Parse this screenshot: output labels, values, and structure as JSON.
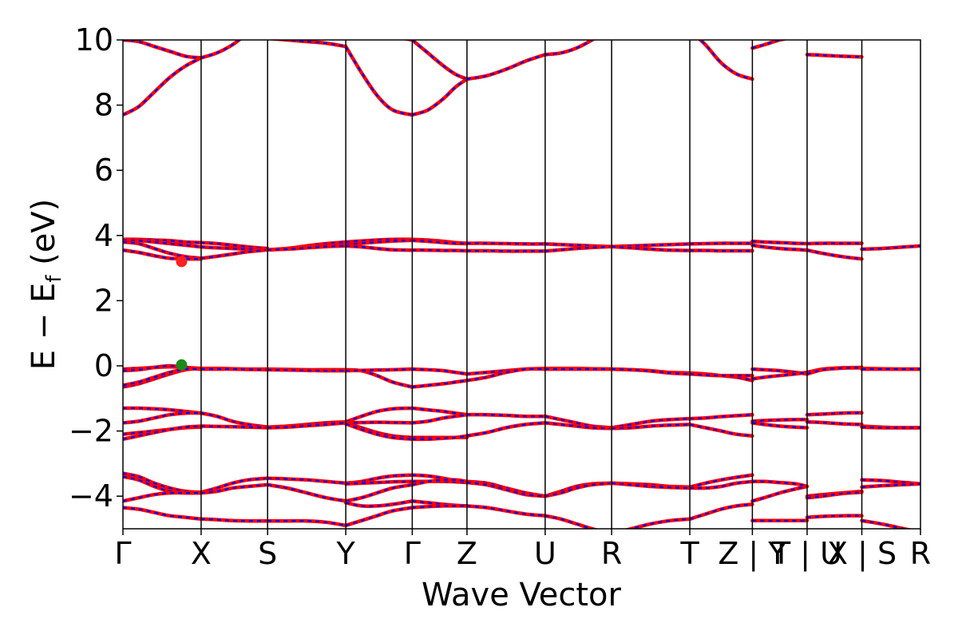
{
  "chart_data": {
    "type": "line",
    "title": "",
    "xlabel": "Wave Vector",
    "ylabel": "E − E_f (eV)",
    "ylabel_parts": {
      "main": "E − E",
      "sub": "f",
      "unit": " (eV)"
    },
    "ylim": [
      -5,
      10
    ],
    "yticks": [
      -4,
      -2,
      0,
      2,
      4,
      6,
      8,
      10
    ],
    "ytick_labels": [
      "−4",
      "−2",
      "0",
      "2",
      "4",
      "6",
      "8",
      "10"
    ],
    "grid": false,
    "kpath_positions": [
      0,
      1,
      1.85,
      2.85,
      3.7,
      4.4,
      5.4,
      6.25,
      7.25,
      8.05,
      8.75,
      9.45,
      10.2
    ],
    "kpath_labels": [
      "Γ",
      "X",
      "S",
      "Y",
      "Γ",
      "Z",
      "U",
      "R",
      "T",
      "Z | Y",
      "T | U",
      "X | S",
      "R"
    ],
    "line_color_outer": "#ff0000",
    "line_color_inner": "#0000ff",
    "markers": [
      {
        "name": "CBM",
        "x": 0.75,
        "y": 3.2,
        "color": "#ff2020"
      },
      {
        "name": "VBM",
        "x": 0.75,
        "y": 0.03,
        "color": "#1a8a1a"
      }
    ],
    "segments": [
      {
        "x": [
          0,
          0.2,
          0.4,
          0.6,
          0.8,
          1.0
        ],
        "bands": [
          [
            7.7,
            7.95,
            8.4,
            8.85,
            9.2,
            9.45
          ],
          [
            10.0,
            9.95,
            9.8,
            9.65,
            9.5,
            9.45
          ],
          [
            3.88,
            3.88,
            3.86,
            3.84,
            3.8,
            3.78
          ],
          [
            3.85,
            3.84,
            3.8,
            3.75,
            3.7,
            3.65
          ],
          [
            3.8,
            3.75,
            3.6,
            3.45,
            3.35,
            3.3
          ],
          [
            3.55,
            3.48,
            3.38,
            3.3,
            3.28,
            3.28
          ],
          [
            -0.1,
            -0.08,
            -0.05,
            -0.03,
            -0.05,
            -0.08
          ],
          [
            -0.15,
            -0.12,
            -0.05,
            0.0,
            -0.05,
            -0.1
          ],
          [
            -0.65,
            -0.55,
            -0.4,
            -0.25,
            -0.12,
            -0.08
          ],
          [
            -0.6,
            -0.5,
            -0.35,
            -0.2,
            -0.1,
            -0.1
          ],
          [
            -1.3,
            -1.3,
            -1.32,
            -1.35,
            -1.4,
            -1.45
          ],
          [
            -1.75,
            -1.7,
            -1.6,
            -1.5,
            -1.45,
            -1.45
          ],
          [
            -2.1,
            -2.05,
            -2.0,
            -1.95,
            -1.9,
            -1.88
          ],
          [
            -2.25,
            -2.15,
            -2.05,
            -1.95,
            -1.88,
            -1.85
          ],
          [
            -3.3,
            -3.4,
            -3.6,
            -3.75,
            -3.85,
            -3.88
          ],
          [
            -3.4,
            -3.5,
            -3.7,
            -3.85,
            -3.9,
            -3.9
          ],
          [
            -4.15,
            -4.05,
            -3.95,
            -3.9,
            -3.9,
            -3.9
          ],
          [
            -4.35,
            -4.4,
            -4.5,
            -4.6,
            -4.65,
            -4.7
          ]
        ]
      },
      {
        "x": [
          1.0,
          1.2,
          1.4,
          1.6,
          1.85
        ],
        "bands": [
          [
            9.45,
            9.6,
            9.85,
            10.2,
            10.5
          ],
          [
            3.78,
            3.75,
            3.7,
            3.65,
            3.6
          ],
          [
            3.65,
            3.62,
            3.6,
            3.58,
            3.56
          ],
          [
            3.3,
            3.36,
            3.43,
            3.5,
            3.56
          ],
          [
            -0.08,
            -0.08,
            -0.09,
            -0.1,
            -0.1
          ],
          [
            -0.1,
            -0.1,
            -0.1,
            -0.11,
            -0.12
          ],
          [
            -1.45,
            -1.55,
            -1.7,
            -1.8,
            -1.88
          ],
          [
            -1.85,
            -1.86,
            -1.87,
            -1.88,
            -1.9
          ],
          [
            -3.88,
            -3.75,
            -3.6,
            -3.5,
            -3.45
          ],
          [
            -3.9,
            -3.85,
            -3.75,
            -3.7,
            -3.65
          ],
          [
            -4.7,
            -4.72,
            -4.75,
            -4.76,
            -4.76
          ]
        ]
      },
      {
        "x": [
          1.85,
          2.1,
          2.35,
          2.6,
          2.85
        ],
        "bands": [
          [
            10.05,
            10.0,
            9.95,
            9.9,
            9.8
          ],
          [
            3.56,
            3.6,
            3.68,
            3.75,
            3.8
          ],
          [
            3.56,
            3.6,
            3.65,
            3.7,
            3.72
          ],
          [
            3.56,
            3.58,
            3.62,
            3.66,
            3.68
          ],
          [
            -0.1,
            -0.11,
            -0.12,
            -0.12,
            -0.12
          ],
          [
            -0.12,
            -0.13,
            -0.14,
            -0.15,
            -0.15
          ],
          [
            -1.88,
            -1.85,
            -1.8,
            -1.75,
            -1.72
          ],
          [
            -1.9,
            -1.88,
            -1.84,
            -1.8,
            -1.75
          ],
          [
            -3.45,
            -3.47,
            -3.5,
            -3.55,
            -3.6
          ],
          [
            -3.65,
            -3.75,
            -3.9,
            -4.05,
            -4.15
          ],
          [
            -4.76,
            -4.76,
            -4.76,
            -4.8,
            -4.9
          ]
        ]
      },
      {
        "x": [
          2.85,
          3.05,
          3.25,
          3.45,
          3.7
        ],
        "bands": [
          [
            9.8,
            9.0,
            8.3,
            7.85,
            7.7
          ],
          [
            10.3,
            10.2,
            10.15,
            10.1,
            10.0
          ],
          [
            3.8,
            3.83,
            3.86,
            3.88,
            3.88
          ],
          [
            3.72,
            3.76,
            3.8,
            3.83,
            3.85
          ],
          [
            3.68,
            3.65,
            3.6,
            3.56,
            3.55
          ],
          [
            -0.12,
            -0.15,
            -0.3,
            -0.5,
            -0.65
          ],
          [
            -0.15,
            -0.14,
            -0.13,
            -0.12,
            -0.1
          ],
          [
            -1.72,
            -1.55,
            -1.4,
            -1.32,
            -1.3
          ],
          [
            -1.75,
            -1.74,
            -1.73,
            -1.74,
            -1.75
          ],
          [
            -1.75,
            -1.9,
            -2.05,
            -2.15,
            -2.2
          ],
          [
            -1.78,
            -1.95,
            -2.1,
            -2.2,
            -2.25
          ],
          [
            -3.6,
            -3.55,
            -3.45,
            -3.38,
            -3.35
          ],
          [
            -3.62,
            -3.6,
            -3.58,
            -3.56,
            -3.55
          ],
          [
            -4.15,
            -4.05,
            -3.9,
            -3.75,
            -3.65
          ],
          [
            -4.2,
            -4.3,
            -4.3,
            -4.25,
            -4.15
          ],
          [
            -4.9,
            -4.75,
            -4.6,
            -4.45,
            -4.35
          ]
        ]
      },
      {
        "x": [
          3.7,
          3.9,
          4.1,
          4.25,
          4.4
        ],
        "bands": [
          [
            7.7,
            7.85,
            8.2,
            8.55,
            8.8
          ],
          [
            10.0,
            9.6,
            9.2,
            8.95,
            8.8
          ],
          [
            3.88,
            3.86,
            3.82,
            3.78,
            3.76
          ],
          [
            3.85,
            3.82,
            3.78,
            3.76,
            3.75
          ],
          [
            3.55,
            3.55,
            3.54,
            3.54,
            3.53
          ],
          [
            -0.1,
            -0.12,
            -0.15,
            -0.2,
            -0.25
          ],
          [
            -0.65,
            -0.6,
            -0.55,
            -0.5,
            -0.45
          ],
          [
            -1.3,
            -1.35,
            -1.4,
            -1.45,
            -1.5
          ],
          [
            -1.75,
            -1.7,
            -1.6,
            -1.55,
            -1.5
          ],
          [
            -2.2,
            -2.2,
            -2.2,
            -2.2,
            -2.2
          ],
          [
            -2.25,
            -2.25,
            -2.22,
            -2.2,
            -2.15
          ],
          [
            -3.35,
            -3.38,
            -3.45,
            -3.52,
            -3.55
          ],
          [
            -3.55,
            -3.55,
            -3.55,
            -3.56,
            -3.58
          ],
          [
            -3.65,
            -3.55,
            -3.5,
            -3.5,
            -3.55
          ],
          [
            -4.15,
            -4.2,
            -4.25,
            -4.28,
            -4.3
          ],
          [
            -4.35,
            -4.32,
            -4.3,
            -4.3,
            -4.3
          ]
        ]
      },
      {
        "x": [
          4.4,
          4.65,
          4.9,
          5.15,
          5.4
        ],
        "bands": [
          [
            8.8,
            8.9,
            9.1,
            9.35,
            9.55
          ],
          [
            3.76,
            3.76,
            3.75,
            3.74,
            3.74
          ],
          [
            3.53,
            3.53,
            3.52,
            3.52,
            3.52
          ],
          [
            -0.25,
            -0.2,
            -0.15,
            -0.1,
            -0.08
          ],
          [
            -0.45,
            -0.35,
            -0.2,
            -0.1,
            -0.1
          ],
          [
            -1.5,
            -1.5,
            -1.52,
            -1.55,
            -1.55
          ],
          [
            -2.15,
            -2.05,
            -1.9,
            -1.8,
            -1.75
          ],
          [
            -3.55,
            -3.6,
            -3.75,
            -3.9,
            -4.0
          ],
          [
            -3.58,
            -3.65,
            -3.8,
            -3.95,
            -4.0
          ],
          [
            -4.3,
            -4.35,
            -4.45,
            -4.55,
            -4.6
          ]
        ]
      },
      {
        "x": [
          5.4,
          5.6,
          5.8,
          6.0,
          6.25
        ],
        "bands": [
          [
            9.55,
            9.6,
            9.75,
            10.0,
            10.4
          ],
          [
            3.74,
            3.72,
            3.7,
            3.68,
            3.66
          ],
          [
            3.52,
            3.56,
            3.6,
            3.63,
            3.66
          ],
          [
            -0.08,
            -0.08,
            -0.08,
            -0.09,
            -0.1
          ],
          [
            -0.1,
            -0.1,
            -0.1,
            -0.1,
            -0.1
          ],
          [
            -1.55,
            -1.65,
            -1.75,
            -1.85,
            -1.9
          ],
          [
            -1.75,
            -1.8,
            -1.85,
            -1.9,
            -1.92
          ],
          [
            -4.0,
            -3.85,
            -3.7,
            -3.62,
            -3.6
          ],
          [
            -4.0,
            -3.9,
            -3.75,
            -3.65,
            -3.6
          ],
          [
            -4.6,
            -4.7,
            -4.85,
            -5.0,
            -5.15
          ]
        ]
      },
      {
        "x": [
          6.25,
          6.5,
          6.75,
          7.0,
          7.25
        ],
        "bands": [
          [
            3.66,
            3.68,
            3.7,
            3.72,
            3.74
          ],
          [
            3.66,
            3.62,
            3.58,
            3.55,
            3.54
          ],
          [
            -0.1,
            -0.12,
            -0.15,
            -0.2,
            -0.22
          ],
          [
            -0.1,
            -0.12,
            -0.16,
            -0.22,
            -0.25
          ],
          [
            -1.9,
            -1.8,
            -1.7,
            -1.65,
            -1.62
          ],
          [
            -1.92,
            -1.9,
            -1.85,
            -1.82,
            -1.8
          ],
          [
            -3.6,
            -3.62,
            -3.65,
            -3.7,
            -3.72
          ],
          [
            -3.6,
            -3.65,
            -3.7,
            -3.73,
            -3.75
          ],
          [
            -5.15,
            -5.0,
            -4.85,
            -4.75,
            -4.7
          ]
        ]
      },
      {
        "x": [
          7.25,
          7.45,
          7.65,
          7.85,
          8.05
        ],
        "bands": [
          [
            10.3,
            9.85,
            9.3,
            8.95,
            8.8
          ],
          [
            3.74,
            3.75,
            3.76,
            3.76,
            3.76
          ],
          [
            3.54,
            3.54,
            3.53,
            3.53,
            3.53
          ],
          [
            -0.22,
            -0.25,
            -0.3,
            -0.35,
            -0.45
          ],
          [
            -0.25,
            -0.28,
            -0.3,
            -0.3,
            -0.3
          ],
          [
            -1.62,
            -1.6,
            -1.56,
            -1.53,
            -1.5
          ],
          [
            -1.8,
            -1.9,
            -2.0,
            -2.1,
            -2.15
          ],
          [
            -3.72,
            -3.6,
            -3.5,
            -3.42,
            -3.35
          ],
          [
            -3.75,
            -3.75,
            -3.7,
            -3.6,
            -3.55
          ],
          [
            -4.7,
            -4.55,
            -4.4,
            -4.3,
            -4.25
          ]
        ]
      },
      {
        "x": [
          8.05,
          8.2,
          8.4,
          8.6,
          8.75
        ],
        "bands": [
          [
            9.75,
            9.85,
            10.0,
            10.1,
            10.2
          ],
          [
            3.82,
            3.8,
            3.78,
            3.76,
            3.75
          ],
          [
            3.7,
            3.65,
            3.6,
            3.57,
            3.55
          ],
          [
            -0.1,
            -0.12,
            -0.15,
            -0.2,
            -0.25
          ],
          [
            -0.4,
            -0.35,
            -0.3,
            -0.25,
            -0.2
          ],
          [
            -1.7,
            -1.68,
            -1.66,
            -1.65,
            -1.65
          ],
          [
            -1.75,
            -1.8,
            -1.85,
            -1.88,
            -1.9
          ],
          [
            -3.55,
            -3.55,
            -3.58,
            -3.62,
            -3.7
          ],
          [
            -4.15,
            -4.05,
            -3.9,
            -3.78,
            -3.7
          ],
          [
            -4.75,
            -4.75,
            -4.75,
            -4.75,
            -4.75
          ]
        ]
      },
      {
        "x": [
          8.75,
          8.95,
          9.2,
          9.45
        ],
        "bands": [
          [
            9.55,
            9.53,
            9.5,
            9.48
          ],
          [
            3.75,
            3.76,
            3.76,
            3.76
          ],
          [
            3.55,
            3.45,
            3.35,
            3.28
          ],
          [
            -0.2,
            -0.1,
            -0.06,
            -0.05
          ],
          [
            -0.25,
            -0.12,
            -0.07,
            -0.06
          ],
          [
            -1.5,
            -1.48,
            -1.45,
            -1.44
          ],
          [
            -1.72,
            -1.74,
            -1.78,
            -1.8
          ],
          [
            -4.0,
            -3.95,
            -3.9,
            -3.85
          ],
          [
            -4.05,
            -4.0,
            -3.92,
            -3.88
          ],
          [
            -4.65,
            -4.62,
            -4.6,
            -4.6
          ]
        ]
      },
      {
        "x": [
          9.45,
          9.7,
          9.95,
          10.2
        ],
        "bands": [
          [
            3.58,
            3.6,
            3.64,
            3.68
          ],
          [
            -0.08,
            -0.09,
            -0.1,
            -0.1
          ],
          [
            -0.1,
            -0.1,
            -0.1,
            -0.1
          ],
          [
            -1.85,
            -1.88,
            -1.9,
            -1.9
          ],
          [
            -1.88,
            -1.9,
            -1.9,
            -1.9
          ],
          [
            -3.5,
            -3.52,
            -3.57,
            -3.62
          ],
          [
            -3.72,
            -3.68,
            -3.65,
            -3.62
          ],
          [
            -4.75,
            -4.85,
            -4.98,
            -5.1
          ]
        ]
      }
    ]
  }
}
